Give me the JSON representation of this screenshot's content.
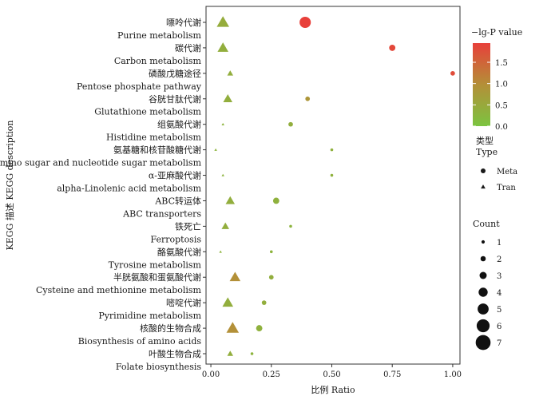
{
  "chart_data": {
    "type": "scatter",
    "title": "",
    "xlabel": "比例 Ratio",
    "ylabel": "KEGG 描述 KEGG description",
    "xlim": [
      -0.02,
      1.03
    ],
    "xticks": [
      0.0,
      0.25,
      0.5,
      0.75,
      1.0
    ],
    "xtick_labels": [
      "0.00",
      "0.25",
      "0.50",
      "0.75",
      "1.00"
    ],
    "grid": false,
    "categories": [
      {
        "zh": "嘌呤代谢",
        "en": "Purine metabolism"
      },
      {
        "zh": "碳代谢",
        "en": "Carbon metabolism"
      },
      {
        "zh": "磷酸戊糖途径",
        "en": "Pentose phosphate pathway"
      },
      {
        "zh": "谷胱甘肽代谢",
        "en": "Glutathione metabolism"
      },
      {
        "zh": "组氨酸代谢",
        "en": "Histidine metabolism"
      },
      {
        "zh": "氨基糖和核苷酸糖代谢",
        "en": "Amino sugar and nucleotide sugar metabolism"
      },
      {
        "zh": "α-亚麻酸代谢",
        "en": "alpha-Linolenic acid metabolism"
      },
      {
        "zh": "ABC转运体",
        "en": "ABC transporters"
      },
      {
        "zh": "铁死亡",
        "en": "Ferroptosis"
      },
      {
        "zh": "酪氨酸代谢",
        "en": "Tyrosine metabolism"
      },
      {
        "zh": "半胱氨酸和蛋氨酸代谢",
        "en": "Cysteine and methionine metabolism"
      },
      {
        "zh": "嘧啶代谢",
        "en": "Pyrimidine metabolism"
      },
      {
        "zh": "核酸的生物合成",
        "en": "Biosynthesis of amino acids"
      },
      {
        "zh": "叶酸生物合成",
        "en": "Folate biosynthesis"
      }
    ],
    "series": [
      {
        "name": "Meta",
        "shape": "circle",
        "points": [
          {
            "category": 0,
            "x": 0.39,
            "count": 6,
            "lgp": 1.95
          },
          {
            "category": 1,
            "x": 0.75,
            "count": 3,
            "lgp": 1.85
          },
          {
            "category": 2,
            "x": 1.0,
            "count": 2,
            "lgp": 1.8
          },
          {
            "category": 3,
            "x": 0.4,
            "count": 2,
            "lgp": 0.85
          },
          {
            "category": 4,
            "x": 0.33,
            "count": 2,
            "lgp": 0.4
          },
          {
            "category": 5,
            "x": 0.5,
            "count": 1,
            "lgp": 0.35
          },
          {
            "category": 6,
            "x": 0.5,
            "count": 1,
            "lgp": 0.35
          },
          {
            "category": 7,
            "x": 0.27,
            "count": 3,
            "lgp": 0.35
          },
          {
            "category": 8,
            "x": 0.33,
            "count": 1,
            "lgp": 0.3
          },
          {
            "category": 9,
            "x": 0.25,
            "count": 1,
            "lgp": 0.3
          },
          {
            "category": 10,
            "x": 0.25,
            "count": 2,
            "lgp": 0.4
          },
          {
            "category": 11,
            "x": 0.22,
            "count": 2,
            "lgp": 0.4
          },
          {
            "category": 12,
            "x": 0.2,
            "count": 3,
            "lgp": 0.35
          },
          {
            "category": 13,
            "x": 0.17,
            "count": 1,
            "lgp": 0.3
          }
        ]
      },
      {
        "name": "Tran",
        "shape": "triangle",
        "points": [
          {
            "category": 0,
            "x": 0.05,
            "count": 7,
            "lgp": 0.45
          },
          {
            "category": 1,
            "x": 0.05,
            "count": 6,
            "lgp": 0.4
          },
          {
            "category": 2,
            "x": 0.08,
            "count": 3,
            "lgp": 0.4
          },
          {
            "category": 3,
            "x": 0.07,
            "count": 5,
            "lgp": 0.4
          },
          {
            "category": 4,
            "x": 0.05,
            "count": 1,
            "lgp": 0.3
          },
          {
            "category": 5,
            "x": 0.02,
            "count": 1,
            "lgp": 0.3
          },
          {
            "category": 6,
            "x": 0.05,
            "count": 1,
            "lgp": 0.3
          },
          {
            "category": 7,
            "x": 0.08,
            "count": 5,
            "lgp": 0.4
          },
          {
            "category": 8,
            "x": 0.06,
            "count": 4,
            "lgp": 0.4
          },
          {
            "category": 9,
            "x": 0.04,
            "count": 1,
            "lgp": 0.3
          },
          {
            "category": 10,
            "x": 0.1,
            "count": 6,
            "lgp": 0.95
          },
          {
            "category": 11,
            "x": 0.07,
            "count": 6,
            "lgp": 0.4
          },
          {
            "category": 12,
            "x": 0.09,
            "count": 7,
            "lgp": 0.95
          },
          {
            "category": 13,
            "x": 0.08,
            "count": 3,
            "lgp": 0.4
          }
        ]
      }
    ],
    "color_legend": {
      "title": "−lg-P value",
      "min": 0.0,
      "max": 1.95,
      "ticks": [
        "0.0",
        "0.5",
        "1.0",
        "1.5"
      ],
      "tick_values": [
        0.0,
        0.5,
        1.0,
        1.5
      ],
      "colors": [
        "#7bc440",
        "#b48f38",
        "#e8403a"
      ]
    },
    "type_legend": {
      "title_zh": "类型",
      "title_en": "Type",
      "items": [
        {
          "label": "Meta",
          "shape": "circle"
        },
        {
          "label": "Tran",
          "shape": "triangle"
        }
      ]
    },
    "count_legend": {
      "title": "Count",
      "items": [
        1,
        2,
        3,
        4,
        5,
        6,
        7
      ],
      "labels": [
        "1",
        "2",
        "3",
        "4",
        "5",
        "6",
        "7"
      ]
    }
  }
}
